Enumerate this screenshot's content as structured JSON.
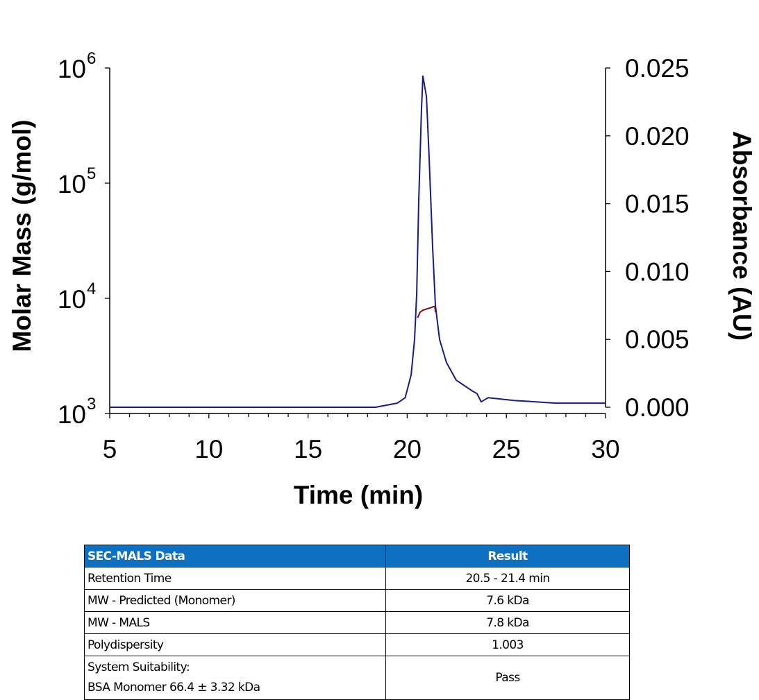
{
  "chart_data": {
    "type": "line",
    "xlabel": "Time (min)",
    "ylabel_left": "Molar Mass (g/mol)",
    "ylabel_right": "Absorbance (AU)",
    "xlim": [
      5,
      30
    ],
    "xticks": [
      "5",
      "10",
      "15",
      "20",
      "25",
      "30"
    ],
    "ylim_left": [
      1000,
      1000000
    ],
    "yscale_left": "log",
    "yticks_left": [
      {
        "base": "10",
        "exp": "3"
      },
      {
        "base": "10",
        "exp": "4"
      },
      {
        "base": "10",
        "exp": "5"
      },
      {
        "base": "10",
        "exp": "6"
      }
    ],
    "ylim_right": [
      0,
      0.025
    ],
    "yticks_right": [
      "0.000",
      "0.005",
      "0.010",
      "0.015",
      "0.020",
      "0.025"
    ],
    "grid": false,
    "series": [
      {
        "axis": "right",
        "color": "#1a1a80",
        "x": [
          5,
          18.4,
          19.5,
          19.9,
          20.2,
          20.37,
          20.48,
          20.58,
          20.72,
          20.79,
          20.97,
          21.1,
          21.28,
          21.42,
          21.63,
          21.98,
          22.47,
          23.28,
          23.52,
          23.73,
          24.08,
          25.38,
          27.5,
          30
        ],
        "y": [
          0.0,
          0.0,
          0.0003,
          0.0007,
          0.0024,
          0.005,
          0.0084,
          0.0152,
          0.022,
          0.0244,
          0.0229,
          0.0186,
          0.0118,
          0.0075,
          0.005,
          0.0033,
          0.002,
          0.0012,
          0.001,
          0.0004,
          0.0007,
          0.0005,
          0.0003,
          0.0003
        ]
      },
      {
        "axis": "left",
        "color": "#7a1010",
        "x": [
          20.5,
          20.55,
          20.65,
          20.8,
          21.0,
          21.2,
          21.35,
          21.4,
          21.42
        ],
        "y": [
          6800,
          6900,
          7600,
          7900,
          8100,
          8300,
          8500,
          8400,
          7600
        ]
      }
    ]
  },
  "table": {
    "headers": [
      "SEC-MALS Data",
      "Result"
    ],
    "rows": [
      {
        "label": "Retention Time",
        "value": "20.5 - 21.4 min"
      },
      {
        "label": "MW - Predicted (Monomer)",
        "value": "7.6 kDa"
      },
      {
        "label": "MW - MALS",
        "value": "7.8 kDa"
      },
      {
        "label": "Polydispersity",
        "value": "1.003"
      }
    ],
    "last_row": {
      "label_line1": "System Suitability:",
      "label_line2": "BSA Monomer 66.4 ± 3.32 kDa",
      "value": "Pass"
    },
    "header_color": "#0d70c0"
  }
}
